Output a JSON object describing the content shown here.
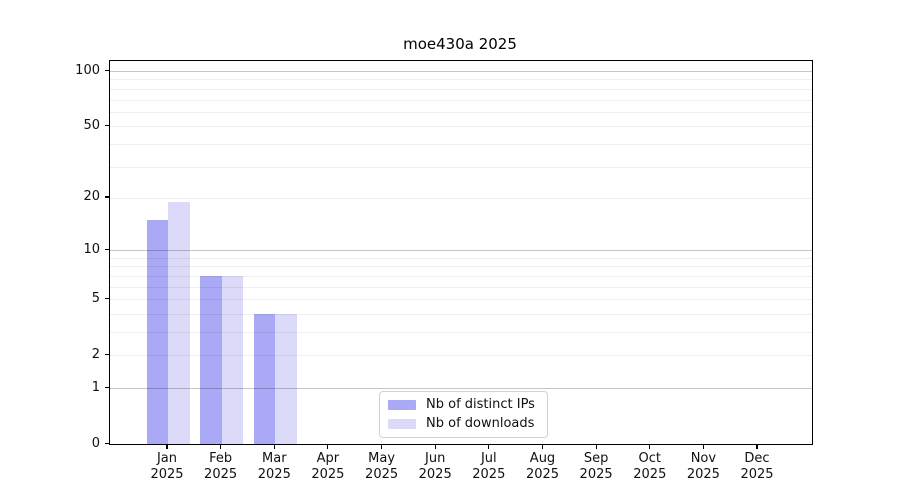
{
  "chart_data": {
    "type": "bar",
    "title": "moe430a 2025",
    "categories": [
      "Jan",
      "Feb",
      "Mar",
      "Apr",
      "May",
      "Jun",
      "Jul",
      "Aug",
      "Sep",
      "Oct",
      "Nov",
      "Dec"
    ],
    "x_year_label": "2025",
    "series": [
      {
        "name": "Nb of distinct IPs",
        "color": "#a9a9f5",
        "values": [
          15,
          7,
          4,
          0,
          0,
          0,
          0,
          0,
          0,
          0,
          0,
          0
        ]
      },
      {
        "name": "Nb of downloads",
        "color": "#dbdbf9",
        "values": [
          19,
          7,
          4,
          0,
          0,
          0,
          0,
          0,
          0,
          0,
          0,
          0
        ]
      }
    ],
    "xlabel": "",
    "ylabel": "",
    "yscale": "log1p",
    "ylim": [
      0,
      113
    ],
    "ytick_values": [
      0,
      1,
      2,
      5,
      10,
      20,
      50,
      100
    ],
    "ytick_labels": [
      "0",
      "1",
      "2",
      "5",
      "10",
      "20",
      "50",
      "100"
    ],
    "major_gridlines": [
      1,
      10,
      100
    ],
    "minor_gridlines": [
      2,
      3,
      4,
      5,
      6,
      7,
      8,
      9,
      20,
      30,
      40,
      50,
      60,
      70,
      80,
      90
    ],
    "grid": true,
    "legend_position": "lower center",
    "legend_entries": [
      "Nb of distinct IPs",
      "Nb of downloads"
    ]
  },
  "style": {
    "background": "#ffffff",
    "axis_color": "#000000",
    "text_color": "#111111",
    "major_grid_color": "#c8c8c8",
    "minor_grid_color": "#ededed",
    "bar_color_distinct_ips": "#a9a9f5",
    "bar_color_downloads": "#dbdbf9"
  }
}
